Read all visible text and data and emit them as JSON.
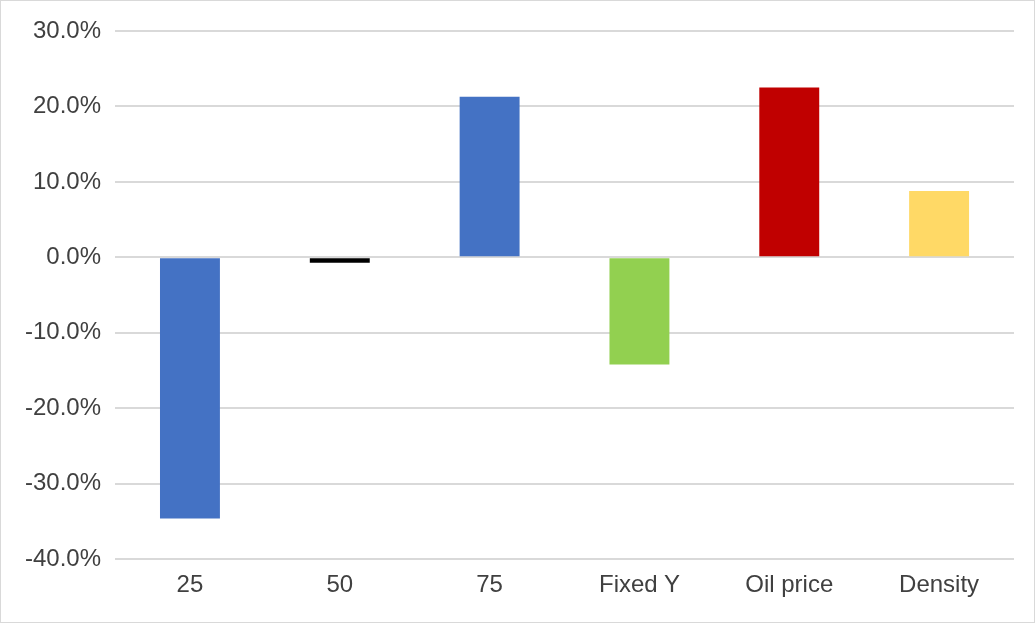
{
  "chart_data": {
    "type": "bar",
    "categories": [
      "25",
      "50",
      "75",
      "Fixed Y",
      "Oil price",
      "Density"
    ],
    "values": [
      -34.6,
      -0.7,
      21.3,
      -14.2,
      22.5,
      8.8
    ],
    "colors": [
      "#4472c4",
      "#000000",
      "#4472c4",
      "#92d050",
      "#c00000",
      "#ffd966"
    ],
    "ylim": [
      -40,
      30
    ],
    "yticks": [
      {
        "value": -40,
        "label": "-40.0%"
      },
      {
        "value": -30,
        "label": "-30.0%"
      },
      {
        "value": -20,
        "label": "-20.0%"
      },
      {
        "value": -10,
        "label": "-10.0%"
      },
      {
        "value": 0,
        "label": "0.0%"
      },
      {
        "value": 10,
        "label": "10.0%"
      },
      {
        "value": 20,
        "label": "20.0%"
      },
      {
        "value": 30,
        "label": "30.0%"
      }
    ],
    "grid": "y",
    "legend": false
  }
}
